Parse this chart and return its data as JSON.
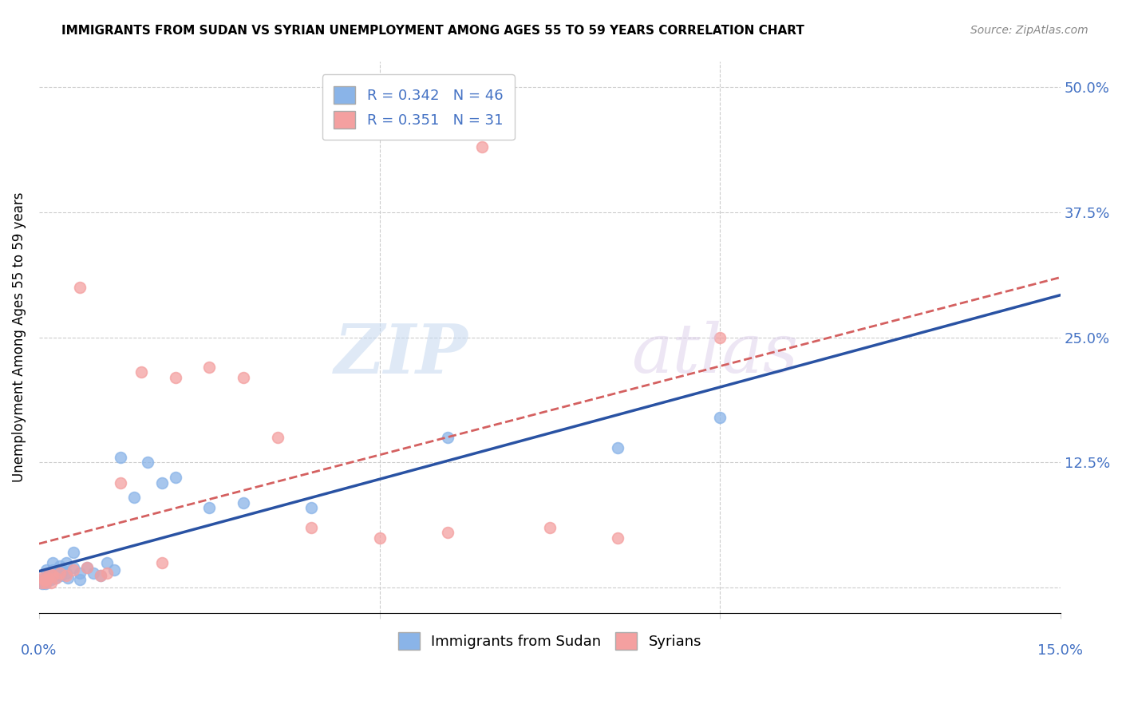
{
  "title": "IMMIGRANTS FROM SUDAN VS SYRIAN UNEMPLOYMENT AMONG AGES 55 TO 59 YEARS CORRELATION CHART",
  "source": "Source: ZipAtlas.com",
  "ylabel": "Unemployment Among Ages 55 to 59 years",
  "ytick_labels": [
    "",
    "12.5%",
    "25.0%",
    "37.5%",
    "50.0%"
  ],
  "ytick_values": [
    0.0,
    0.125,
    0.25,
    0.375,
    0.5
  ],
  "xmin": 0.0,
  "xmax": 0.15,
  "ymin": -0.025,
  "ymax": 0.525,
  "legend_r1": "R = 0.342",
  "legend_n1": "N = 46",
  "legend_r2": "R = 0.351",
  "legend_n2": "N = 31",
  "color_sudan": "#8ab4e8",
  "color_syrian": "#f4a0a0",
  "color_sudan_line": "#2952a3",
  "color_syrian_line": "#d46060",
  "watermark_zip": "ZIP",
  "watermark_atlas": "atlas",
  "sudan_x": [
    0.0002,
    0.0003,
    0.0004,
    0.0005,
    0.0006,
    0.0007,
    0.0008,
    0.0009,
    0.001,
    0.001,
    0.0012,
    0.0013,
    0.0015,
    0.0016,
    0.0018,
    0.002,
    0.002,
    0.0022,
    0.0025,
    0.003,
    0.003,
    0.0032,
    0.0035,
    0.004,
    0.004,
    0.0042,
    0.005,
    0.005,
    0.006,
    0.006,
    0.007,
    0.008,
    0.009,
    0.01,
    0.011,
    0.012,
    0.014,
    0.016,
    0.018,
    0.02,
    0.025,
    0.03,
    0.04,
    0.06,
    0.085,
    0.1
  ],
  "sudan_y": [
    0.005,
    0.008,
    0.006,
    0.004,
    0.007,
    0.005,
    0.006,
    0.004,
    0.01,
    0.018,
    0.008,
    0.012,
    0.015,
    0.01,
    0.008,
    0.018,
    0.025,
    0.012,
    0.01,
    0.015,
    0.022,
    0.012,
    0.018,
    0.015,
    0.025,
    0.01,
    0.02,
    0.035,
    0.008,
    0.015,
    0.02,
    0.015,
    0.012,
    0.025,
    0.018,
    0.13,
    0.09,
    0.125,
    0.105,
    0.11,
    0.08,
    0.085,
    0.08,
    0.15,
    0.14,
    0.17
  ],
  "syrian_x": [
    0.0003,
    0.0005,
    0.0007,
    0.0009,
    0.0011,
    0.0013,
    0.0015,
    0.0018,
    0.002,
    0.0025,
    0.003,
    0.004,
    0.005,
    0.006,
    0.007,
    0.009,
    0.01,
    0.012,
    0.015,
    0.018,
    0.02,
    0.025,
    0.03,
    0.035,
    0.04,
    0.05,
    0.06,
    0.065,
    0.075,
    0.085,
    0.1
  ],
  "syrian_y": [
    0.005,
    0.01,
    0.008,
    0.005,
    0.008,
    0.01,
    0.015,
    0.005,
    0.012,
    0.01,
    0.015,
    0.012,
    0.018,
    0.3,
    0.02,
    0.012,
    0.015,
    0.105,
    0.215,
    0.025,
    0.21,
    0.22,
    0.21,
    0.15,
    0.06,
    0.05,
    0.055,
    0.44,
    0.06,
    0.05,
    0.25
  ]
}
